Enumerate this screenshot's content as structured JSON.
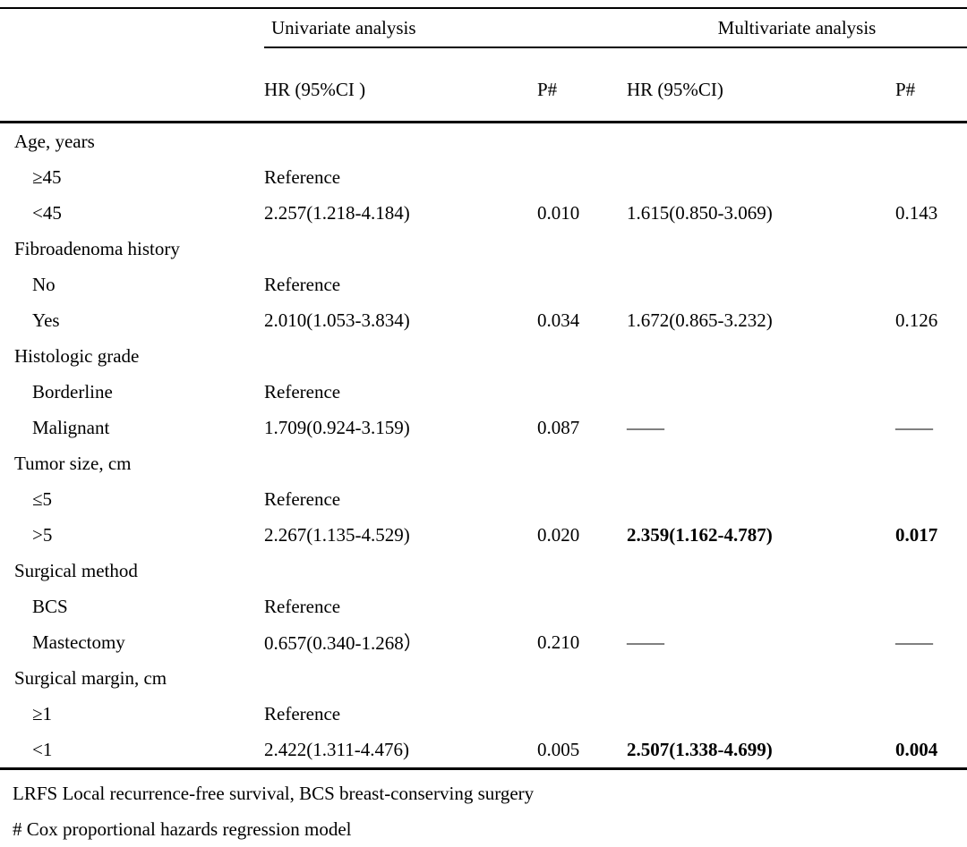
{
  "table": {
    "columns": {
      "uni_group": "Univariate analysis",
      "multi_group": "Multivariate analysis",
      "uni_hr": "HR (95%CI )",
      "uni_p": "P#",
      "multi_hr": "HR (95%CI)",
      "multi_p": "P#"
    },
    "rows": [
      {
        "label": "Age, years",
        "indent": false,
        "uni_hr": "",
        "uni_p": "",
        "multi_hr": "",
        "multi_p": "",
        "bold_multi": false
      },
      {
        "label": "≥45",
        "indent": true,
        "uni_hr": "Reference",
        "uni_p": "",
        "multi_hr": "",
        "multi_p": "",
        "bold_multi": false
      },
      {
        "label": "<45",
        "indent": true,
        "uni_hr": "2.257(1.218-4.184)",
        "uni_p": "0.010",
        "multi_hr": "1.615(0.850-3.069)",
        "multi_p": "0.143",
        "bold_multi": false
      },
      {
        "label": "Fibroadenoma history",
        "indent": false,
        "uni_hr": "",
        "uni_p": "",
        "multi_hr": "",
        "multi_p": "",
        "bold_multi": false
      },
      {
        "label": "No",
        "indent": true,
        "uni_hr": "Reference",
        "uni_p": "",
        "multi_hr": "",
        "multi_p": "",
        "bold_multi": false
      },
      {
        "label": "Yes",
        "indent": true,
        "uni_hr": "2.010(1.053-3.834)",
        "uni_p": "0.034",
        "multi_hr": "1.672(0.865-3.232)",
        "multi_p": "0.126",
        "bold_multi": false
      },
      {
        "label": "Histologic grade",
        "indent": false,
        "uni_hr": "",
        "uni_p": "",
        "multi_hr": "",
        "multi_p": "",
        "bold_multi": false
      },
      {
        "label": "Borderline",
        "indent": true,
        "uni_hr": "Reference",
        "uni_p": "",
        "multi_hr": "",
        "multi_p": "",
        "bold_multi": false
      },
      {
        "label": "Malignant",
        "indent": true,
        "uni_hr": "1.709(0.924-3.159)",
        "uni_p": "0.087",
        "multi_hr": "——",
        "multi_p": "——",
        "bold_multi": false
      },
      {
        "label": "Tumor size, cm",
        "indent": false,
        "uni_hr": "",
        "uni_p": "",
        "multi_hr": "",
        "multi_p": "",
        "bold_multi": false
      },
      {
        "label": "≤5",
        "indent": true,
        "uni_hr": "Reference",
        "uni_p": "",
        "multi_hr": "",
        "multi_p": "",
        "bold_multi": false
      },
      {
        "label": ">5",
        "indent": true,
        "uni_hr": "2.267(1.135-4.529)",
        "uni_p": "0.020",
        "multi_hr": "2.359(1.162-4.787)",
        "multi_p": "0.017",
        "bold_multi": true
      },
      {
        "label": "Surgical method",
        "indent": false,
        "uni_hr": "",
        "uni_p": "",
        "multi_hr": "",
        "multi_p": "",
        "bold_multi": false
      },
      {
        "label": "BCS",
        "indent": true,
        "uni_hr": "Reference",
        "uni_p": "",
        "multi_hr": "",
        "multi_p": "",
        "bold_multi": false
      },
      {
        "label": "Mastectomy",
        "indent": true,
        "uni_hr": "0.657(0.340-1.268）",
        "uni_p": "0.210",
        "multi_hr": "——",
        "multi_p": "——",
        "bold_multi": false
      },
      {
        "label": "Surgical margin, cm",
        "indent": false,
        "uni_hr": "",
        "uni_p": "",
        "multi_hr": "",
        "multi_p": "",
        "bold_multi": false
      },
      {
        "label": "≥1",
        "indent": true,
        "uni_hr": "Reference",
        "uni_p": "",
        "multi_hr": "",
        "multi_p": "",
        "bold_multi": false
      },
      {
        "label": "<1",
        "indent": true,
        "uni_hr": "2.422(1.311-4.476)",
        "uni_p": "0.005",
        "multi_hr": "2.507(1.338-4.699)",
        "multi_p": "0.004",
        "bold_multi": true
      }
    ],
    "footnotes": [
      "LRFS Local recurrence-free survival, BCS breast-conserving surgery",
      "# Cox proportional hazards regression model"
    ]
  }
}
